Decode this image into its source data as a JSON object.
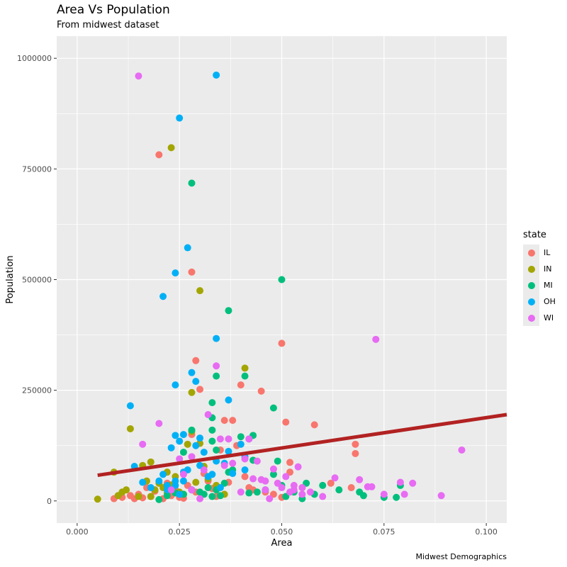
{
  "chart_data": {
    "type": "scatter",
    "title": "Area Vs Population",
    "subtitle": "From midwest dataset",
    "caption": "Midwest Demographics",
    "xlabel": "Area",
    "ylabel": "Population",
    "xlim": [
      -0.005,
      0.105
    ],
    "ylim": [
      -50000,
      1050000
    ],
    "x_ticks": [
      0,
      0.025,
      0.05,
      0.075,
      0.1
    ],
    "x_tick_labels": [
      "0.000",
      "0.025",
      "0.050",
      "0.075",
      "0.100"
    ],
    "y_ticks": [
      0,
      250000,
      500000,
      750000,
      1000000
    ],
    "y_tick_labels": [
      "0",
      "250000",
      "500000",
      "750000",
      "1000000"
    ],
    "grid": true,
    "legend": {
      "title": "state",
      "position": "right"
    },
    "trend_line": {
      "x": [
        0.005,
        0.105
      ],
      "y": [
        58000,
        195000
      ],
      "color": "#b22222"
    },
    "series": [
      {
        "name": "IL",
        "color": "#f8766d",
        "points": [
          [
            0.009,
            5000
          ],
          [
            0.011,
            8000
          ],
          [
            0.013,
            12000
          ],
          [
            0.014,
            5000
          ],
          [
            0.015,
            15000
          ],
          [
            0.016,
            7000
          ],
          [
            0.017,
            30000
          ],
          [
            0.018,
            10000
          ],
          [
            0.019,
            22000
          ],
          [
            0.021,
            5000
          ],
          [
            0.022,
            40000
          ],
          [
            0.023,
            12000
          ],
          [
            0.024,
            25000
          ],
          [
            0.025,
            18000
          ],
          [
            0.026,
            6000
          ],
          [
            0.027,
            35000
          ],
          [
            0.028,
            150000
          ],
          [
            0.029,
            20000
          ],
          [
            0.031,
            62000
          ],
          [
            0.032,
            45000
          ],
          [
            0.033,
            28000
          ],
          [
            0.035,
            115000
          ],
          [
            0.036,
            182000
          ],
          [
            0.038,
            182000
          ],
          [
            0.039,
            125000
          ],
          [
            0.042,
            30000
          ],
          [
            0.043,
            25000
          ],
          [
            0.045,
            248000
          ],
          [
            0.046,
            20000
          ],
          [
            0.048,
            15000
          ],
          [
            0.05,
            8000
          ],
          [
            0.051,
            178000
          ],
          [
            0.052,
            65000
          ],
          [
            0.052,
            87000
          ],
          [
            0.055,
            30000
          ],
          [
            0.058,
            172000
          ],
          [
            0.062,
            40000
          ],
          [
            0.067,
            30000
          ],
          [
            0.068,
            128000
          ],
          [
            0.068,
            107000
          ],
          [
            0.02,
            782000
          ],
          [
            0.028,
            517000
          ],
          [
            0.029,
            317000
          ],
          [
            0.03,
            252000
          ],
          [
            0.04,
            262000
          ],
          [
            0.05,
            356000
          ],
          [
            0.025,
            8000
          ],
          [
            0.034,
            10000
          ],
          [
            0.037,
            42000
          ],
          [
            0.041,
            55000
          ]
        ]
      },
      {
        "name": "IN",
        "color": "#a3a500",
        "points": [
          [
            0.005,
            4000
          ],
          [
            0.01,
            12000
          ],
          [
            0.011,
            20000
          ],
          [
            0.012,
            25000
          ],
          [
            0.009,
            65000
          ],
          [
            0.013,
            163000
          ],
          [
            0.015,
            10000
          ],
          [
            0.016,
            80000
          ],
          [
            0.017,
            45000
          ],
          [
            0.018,
            88000
          ],
          [
            0.019,
            25000
          ],
          [
            0.02,
            40000
          ],
          [
            0.021,
            30000
          ],
          [
            0.022,
            65000
          ],
          [
            0.023,
            36000
          ],
          [
            0.024,
            55000
          ],
          [
            0.025,
            20000
          ],
          [
            0.026,
            15000
          ],
          [
            0.027,
            128000
          ],
          [
            0.028,
            157000
          ],
          [
            0.028,
            245000
          ],
          [
            0.03,
            130000
          ],
          [
            0.031,
            78000
          ],
          [
            0.032,
            50000
          ],
          [
            0.034,
            35000
          ],
          [
            0.036,
            15000
          ],
          [
            0.041,
            300000
          ],
          [
            0.023,
            798000
          ],
          [
            0.03,
            475000
          ],
          [
            0.018,
            10000
          ],
          [
            0.022,
            18000
          ],
          [
            0.029,
            42000
          ]
        ]
      },
      {
        "name": "MI",
        "color": "#00bf7d",
        "points": [
          [
            0.02,
            3000
          ],
          [
            0.022,
            12000
          ],
          [
            0.024,
            18000
          ],
          [
            0.026,
            15000
          ],
          [
            0.028,
            25000
          ],
          [
            0.03,
            20000
          ],
          [
            0.031,
            15000
          ],
          [
            0.032,
            30000
          ],
          [
            0.033,
            10000
          ],
          [
            0.034,
            25000
          ],
          [
            0.035,
            12000
          ],
          [
            0.036,
            40000
          ],
          [
            0.037,
            65000
          ],
          [
            0.038,
            70000
          ],
          [
            0.04,
            145000
          ],
          [
            0.041,
            282000
          ],
          [
            0.042,
            18000
          ],
          [
            0.043,
            148000
          ],
          [
            0.043,
            92000
          ],
          [
            0.044,
            20000
          ],
          [
            0.046,
            25000
          ],
          [
            0.048,
            60000
          ],
          [
            0.048,
            210000
          ],
          [
            0.049,
            90000
          ],
          [
            0.05,
            35000
          ],
          [
            0.051,
            10000
          ],
          [
            0.053,
            20000
          ],
          [
            0.055,
            5000
          ],
          [
            0.056,
            40000
          ],
          [
            0.058,
            15000
          ],
          [
            0.06,
            35000
          ],
          [
            0.064,
            25000
          ],
          [
            0.069,
            20000
          ],
          [
            0.07,
            12000
          ],
          [
            0.075,
            8000
          ],
          [
            0.078,
            8000
          ],
          [
            0.079,
            35000
          ],
          [
            0.028,
            718000
          ],
          [
            0.05,
            500000
          ],
          [
            0.037,
            430000
          ],
          [
            0.034,
            282000
          ],
          [
            0.033,
            222000
          ],
          [
            0.033,
            188000
          ],
          [
            0.033,
            160000
          ],
          [
            0.028,
            160000
          ],
          [
            0.026,
            110000
          ],
          [
            0.033,
            135000
          ],
          [
            0.034,
            115000
          ]
        ]
      },
      {
        "name": "OH",
        "color": "#00b0f6",
        "points": [
          [
            0.013,
            215000
          ],
          [
            0.014,
            78000
          ],
          [
            0.016,
            42000
          ],
          [
            0.018,
            30000
          ],
          [
            0.02,
            45000
          ],
          [
            0.021,
            60000
          ],
          [
            0.022,
            25000
          ],
          [
            0.023,
            120000
          ],
          [
            0.024,
            148000
          ],
          [
            0.024,
            35000
          ],
          [
            0.025,
            135000
          ],
          [
            0.025,
            15000
          ],
          [
            0.026,
            150000
          ],
          [
            0.026,
            65000
          ],
          [
            0.027,
            70000
          ],
          [
            0.028,
            290000
          ],
          [
            0.029,
            270000
          ],
          [
            0.029,
            125000
          ],
          [
            0.03,
            80000
          ],
          [
            0.03,
            142000
          ],
          [
            0.031,
            110000
          ],
          [
            0.032,
            55000
          ],
          [
            0.033,
            60000
          ],
          [
            0.034,
            90000
          ],
          [
            0.035,
            30000
          ],
          [
            0.036,
            85000
          ],
          [
            0.037,
            228000
          ],
          [
            0.037,
            112000
          ],
          [
            0.038,
            62000
          ],
          [
            0.04,
            128000
          ],
          [
            0.041,
            100000
          ],
          [
            0.041,
            70000
          ],
          [
            0.042,
            140000
          ],
          [
            0.028,
            25000
          ],
          [
            0.024,
            262000
          ],
          [
            0.021,
            462000
          ],
          [
            0.024,
            515000
          ],
          [
            0.027,
            572000
          ],
          [
            0.025,
            865000
          ],
          [
            0.034,
            962000
          ],
          [
            0.034,
            367000
          ],
          [
            0.026,
            45000
          ],
          [
            0.022,
            35000
          ],
          [
            0.024,
            45000
          ]
        ]
      },
      {
        "name": "WI",
        "color": "#e76bf3",
        "points": [
          [
            0.015,
            960000
          ],
          [
            0.016,
            128000
          ],
          [
            0.02,
            175000
          ],
          [
            0.023,
            25000
          ],
          [
            0.025,
            95000
          ],
          [
            0.026,
            60000
          ],
          [
            0.028,
            25000
          ],
          [
            0.028,
            100000
          ],
          [
            0.03,
            5000
          ],
          [
            0.031,
            70000
          ],
          [
            0.032,
            195000
          ],
          [
            0.034,
            305000
          ],
          [
            0.035,
            140000
          ],
          [
            0.036,
            80000
          ],
          [
            0.037,
            140000
          ],
          [
            0.038,
            85000
          ],
          [
            0.04,
            20000
          ],
          [
            0.041,
            95000
          ],
          [
            0.042,
            140000
          ],
          [
            0.043,
            50000
          ],
          [
            0.044,
            90000
          ],
          [
            0.045,
            48000
          ],
          [
            0.046,
            45000
          ],
          [
            0.047,
            5000
          ],
          [
            0.048,
            72000
          ],
          [
            0.049,
            40000
          ],
          [
            0.051,
            55000
          ],
          [
            0.052,
            20000
          ],
          [
            0.053,
            25000
          ],
          [
            0.054,
            77000
          ],
          [
            0.055,
            30000
          ],
          [
            0.057,
            20000
          ],
          [
            0.06,
            10000
          ],
          [
            0.063,
            52000
          ],
          [
            0.069,
            48000
          ],
          [
            0.071,
            32000
          ],
          [
            0.072,
            32000
          ],
          [
            0.075,
            15000
          ],
          [
            0.079,
            42000
          ],
          [
            0.08,
            15000
          ],
          [
            0.082,
            40000
          ],
          [
            0.089,
            12000
          ],
          [
            0.094,
            115000
          ],
          [
            0.073,
            365000
          ],
          [
            0.046,
            25000
          ],
          [
            0.05,
            30000
          ],
          [
            0.053,
            35000
          ],
          [
            0.055,
            15000
          ]
        ]
      }
    ]
  }
}
